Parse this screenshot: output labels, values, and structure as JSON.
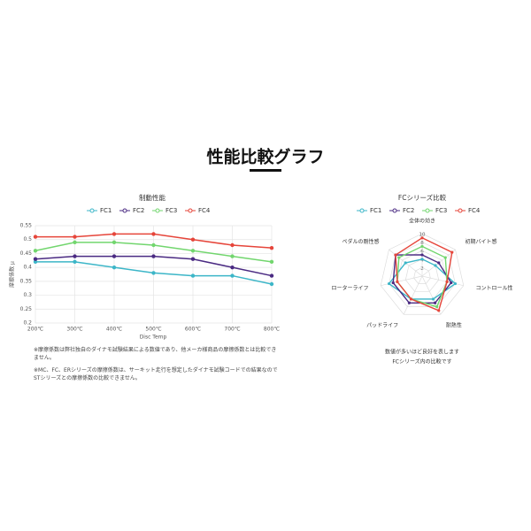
{
  "title": "性能比較グラフ",
  "notes": [
    "※摩擦係数は弊社独自のダイナモ試験結果による数値であり、他メーカ様商品の摩擦係数とは比較できません。",
    "※MC、FC、ERシリーズの摩擦係数は、サーキット走行を想定したダイナモ試験コードでの結果なのでSTシリーズとの摩擦係数の比較できません。"
  ],
  "chart_data": [
    {
      "type": "line",
      "title": "制動性能",
      "x_label": "Disc Temp",
      "y_label": "摩擦係数 μ",
      "categories": [
        "200℃",
        "300℃",
        "400℃",
        "500℃",
        "600℃",
        "700℃",
        "800℃"
      ],
      "ylim": [
        0.2,
        0.55
      ],
      "yticks": [
        0.2,
        0.25,
        0.3,
        0.35,
        0.4,
        0.45,
        0.5,
        0.55
      ],
      "grid": true,
      "series": [
        {
          "name": "FC1",
          "color": "#3cb6c8",
          "values": [
            0.42,
            0.42,
            0.4,
            0.38,
            0.37,
            0.37,
            0.34
          ]
        },
        {
          "name": "FC2",
          "color": "#4a2a82",
          "values": [
            0.43,
            0.44,
            0.44,
            0.44,
            0.43,
            0.4,
            0.37
          ]
        },
        {
          "name": "FC3",
          "color": "#72d66e",
          "values": [
            0.46,
            0.49,
            0.49,
            0.48,
            0.46,
            0.44,
            0.42
          ]
        },
        {
          "name": "FC4",
          "color": "#e6453a",
          "values": [
            0.51,
            0.51,
            0.52,
            0.52,
            0.5,
            0.48,
            0.47
          ]
        }
      ]
    },
    {
      "type": "radar",
      "title": "FCシリーズ比較",
      "categories": [
        "全体の効き",
        "初期バイト感",
        "コントロール性",
        "耐熱性",
        "パッドライフ",
        "ローターライフ",
        "ペダルの剛性感"
      ],
      "rlim": [
        0,
        10
      ],
      "rticks": [
        2,
        4,
        6,
        8,
        10
      ],
      "notes": [
        "数値が多いほど良好を表します",
        "FCシリーズ内の比較です"
      ],
      "series": [
        {
          "name": "FC1",
          "color": "#3cb6c8",
          "values": [
            4,
            4,
            8,
            6,
            6,
            8,
            5
          ]
        },
        {
          "name": "FC2",
          "color": "#4a2a82",
          "values": [
            5,
            5,
            7,
            7,
            7,
            7,
            8
          ]
        },
        {
          "name": "FC3",
          "color": "#72d66e",
          "values": [
            7,
            7,
            6,
            8,
            6,
            6,
            7
          ]
        },
        {
          "name": "FC4",
          "color": "#e6453a",
          "values": [
            9,
            9,
            6,
            9,
            6,
            6,
            8
          ]
        }
      ]
    }
  ]
}
